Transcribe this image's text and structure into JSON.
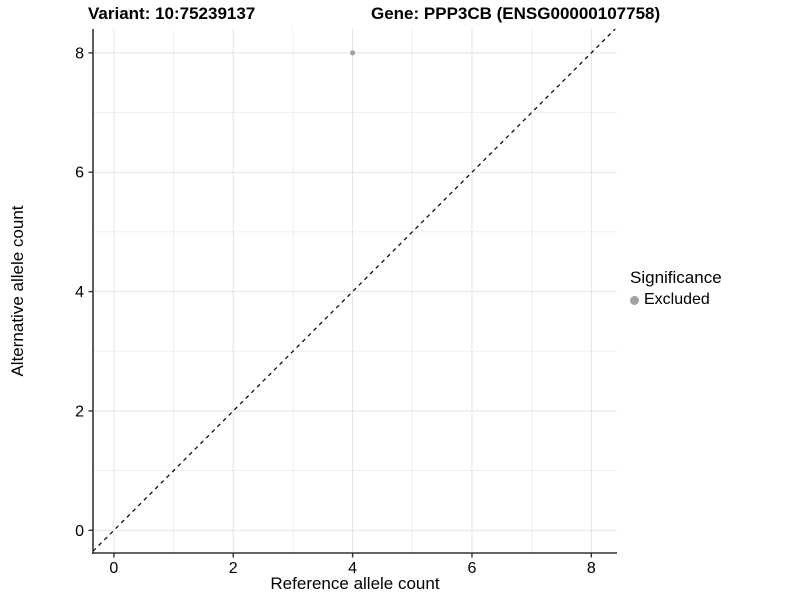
{
  "titles": {
    "variant": "Variant: 10:75239137",
    "gene": "Gene: PPP3CB (ENSG00000107758)"
  },
  "legend": {
    "title": "Significance",
    "items": [
      {
        "label": "Excluded",
        "color": "#a3a3a3"
      }
    ]
  },
  "chart_data": {
    "type": "scatter",
    "title_left": "Variant: 10:75239137",
    "title_right": "Gene: PPP3CB (ENSG00000107758)",
    "xlabel": "Reference allele count",
    "ylabel": "Alternative allele count",
    "xlim": [
      -0.35,
      8.43
    ],
    "ylim": [
      -0.38,
      8.4
    ],
    "x_ticks": [
      0,
      2,
      4,
      6,
      8
    ],
    "y_ticks": [
      0,
      2,
      4,
      6,
      8
    ],
    "x_minor_ticks": [
      1,
      3,
      5,
      7
    ],
    "y_minor_ticks": [
      1,
      3,
      5,
      7
    ],
    "grid": true,
    "legend_position": "right",
    "legend_title": "Significance",
    "series": [
      {
        "name": "Excluded",
        "color": "#a3a3a3",
        "points": [
          {
            "x": 4,
            "y": 8
          }
        ]
      }
    ],
    "abline": {
      "slope": 1,
      "intercept": 0,
      "dashed": true,
      "color": "#000000"
    },
    "colors": {
      "axis_line": "#333333",
      "grid_major": "#e4e4e4",
      "grid_minor": "#efefef",
      "tick_mark": "#333333"
    }
  }
}
